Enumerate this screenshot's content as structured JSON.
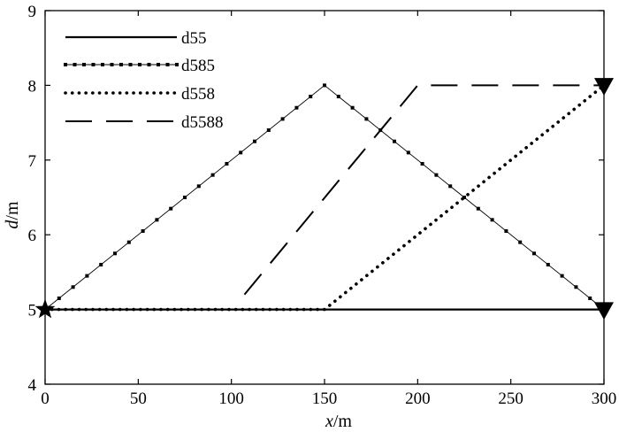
{
  "chart_data": {
    "type": "line",
    "xlabel": {
      "var": "x",
      "unit": "/m"
    },
    "ylabel": {
      "var": "d",
      "unit": "/m"
    },
    "xlim": [
      0,
      300
    ],
    "ylim": [
      4,
      9
    ],
    "xticks": [
      "0",
      "50",
      "100",
      "150",
      "200",
      "250",
      "300"
    ],
    "yticks": [
      "4",
      "5",
      "6",
      "7",
      "8",
      "9"
    ],
    "grid": false,
    "legend_position": "top-left",
    "series": [
      {
        "name": "d55",
        "style": "solid",
        "x": [
          0,
          300
        ],
        "y": [
          5,
          5
        ]
      },
      {
        "name": "d585",
        "style": "solid-marker",
        "x": [
          0,
          150,
          300
        ],
        "y": [
          5,
          8,
          5
        ]
      },
      {
        "name": "d558",
        "style": "dotted",
        "x": [
          0,
          150,
          300
        ],
        "y": [
          5,
          5,
          8
        ]
      },
      {
        "name": "d5588",
        "style": "dashed",
        "x": [
          107,
          200,
          300
        ],
        "y": [
          5.2,
          8,
          8
        ]
      }
    ],
    "annotations": [
      {
        "marker": "star",
        "x": 0,
        "y": 5
      },
      {
        "marker": "triangle-down",
        "x": 300,
        "y": 5
      },
      {
        "marker": "triangle-down",
        "x": 300,
        "y": 8
      }
    ]
  }
}
